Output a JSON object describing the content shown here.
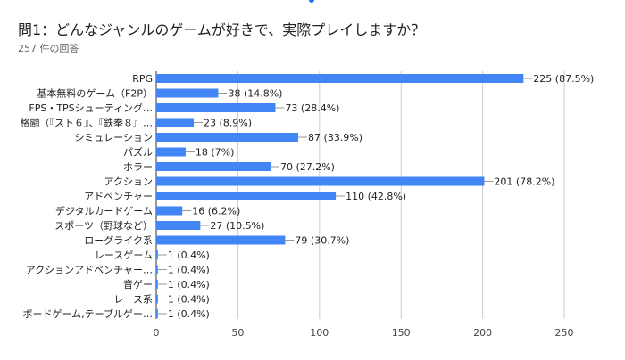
{
  "question": {
    "title": "問1：どんなジャンルのゲームが好きで、実際プレイしますか？",
    "response_count": "257 件の回答"
  },
  "colors": {
    "bar": "#4285f4",
    "grid": "#cccccc",
    "leader": "#999999",
    "accent": "#1a73e8"
  },
  "chart_data": {
    "type": "bar",
    "orientation": "horizontal",
    "categories": [
      "RPG",
      "基本無料のゲーム（F2P）",
      "FPS・TPSシューティング…",
      "格闘（『スト６』、『鉄拳８』…",
      "シミュレーション",
      "パズル",
      "ホラー",
      "アクション",
      "アドベンチャー",
      "デジタルカードゲーム",
      "スポーツ（野球など）",
      "ローグライク系",
      "レースゲーム",
      "アクションアドベンチャー…",
      "音ゲー",
      "レース系",
      "ボードゲーム,テーブルゲー…"
    ],
    "values": [
      225,
      38,
      73,
      23,
      87,
      18,
      70,
      201,
      110,
      16,
      27,
      79,
      1,
      1,
      1,
      1,
      1
    ],
    "data_labels": [
      "225 (87.5%)",
      "38 (14.8%)",
      "73 (28.4%)",
      "23 (8.9%)",
      "87 (33.9%)",
      "18 (7%)",
      "70 (27.2%)",
      "201 (78.2%)",
      "110 (42.8%)",
      "16 (6.2%)",
      "27 (10.5%)",
      "79 (30.7%)",
      "1 (0.4%)",
      "1 (0.4%)",
      "1 (0.4%)",
      "1 (0.4%)",
      "1 (0.4%)"
    ],
    "xlim": [
      0,
      250
    ],
    "xticks": [
      0,
      50,
      100,
      150,
      200,
      250
    ],
    "grid": true
  }
}
